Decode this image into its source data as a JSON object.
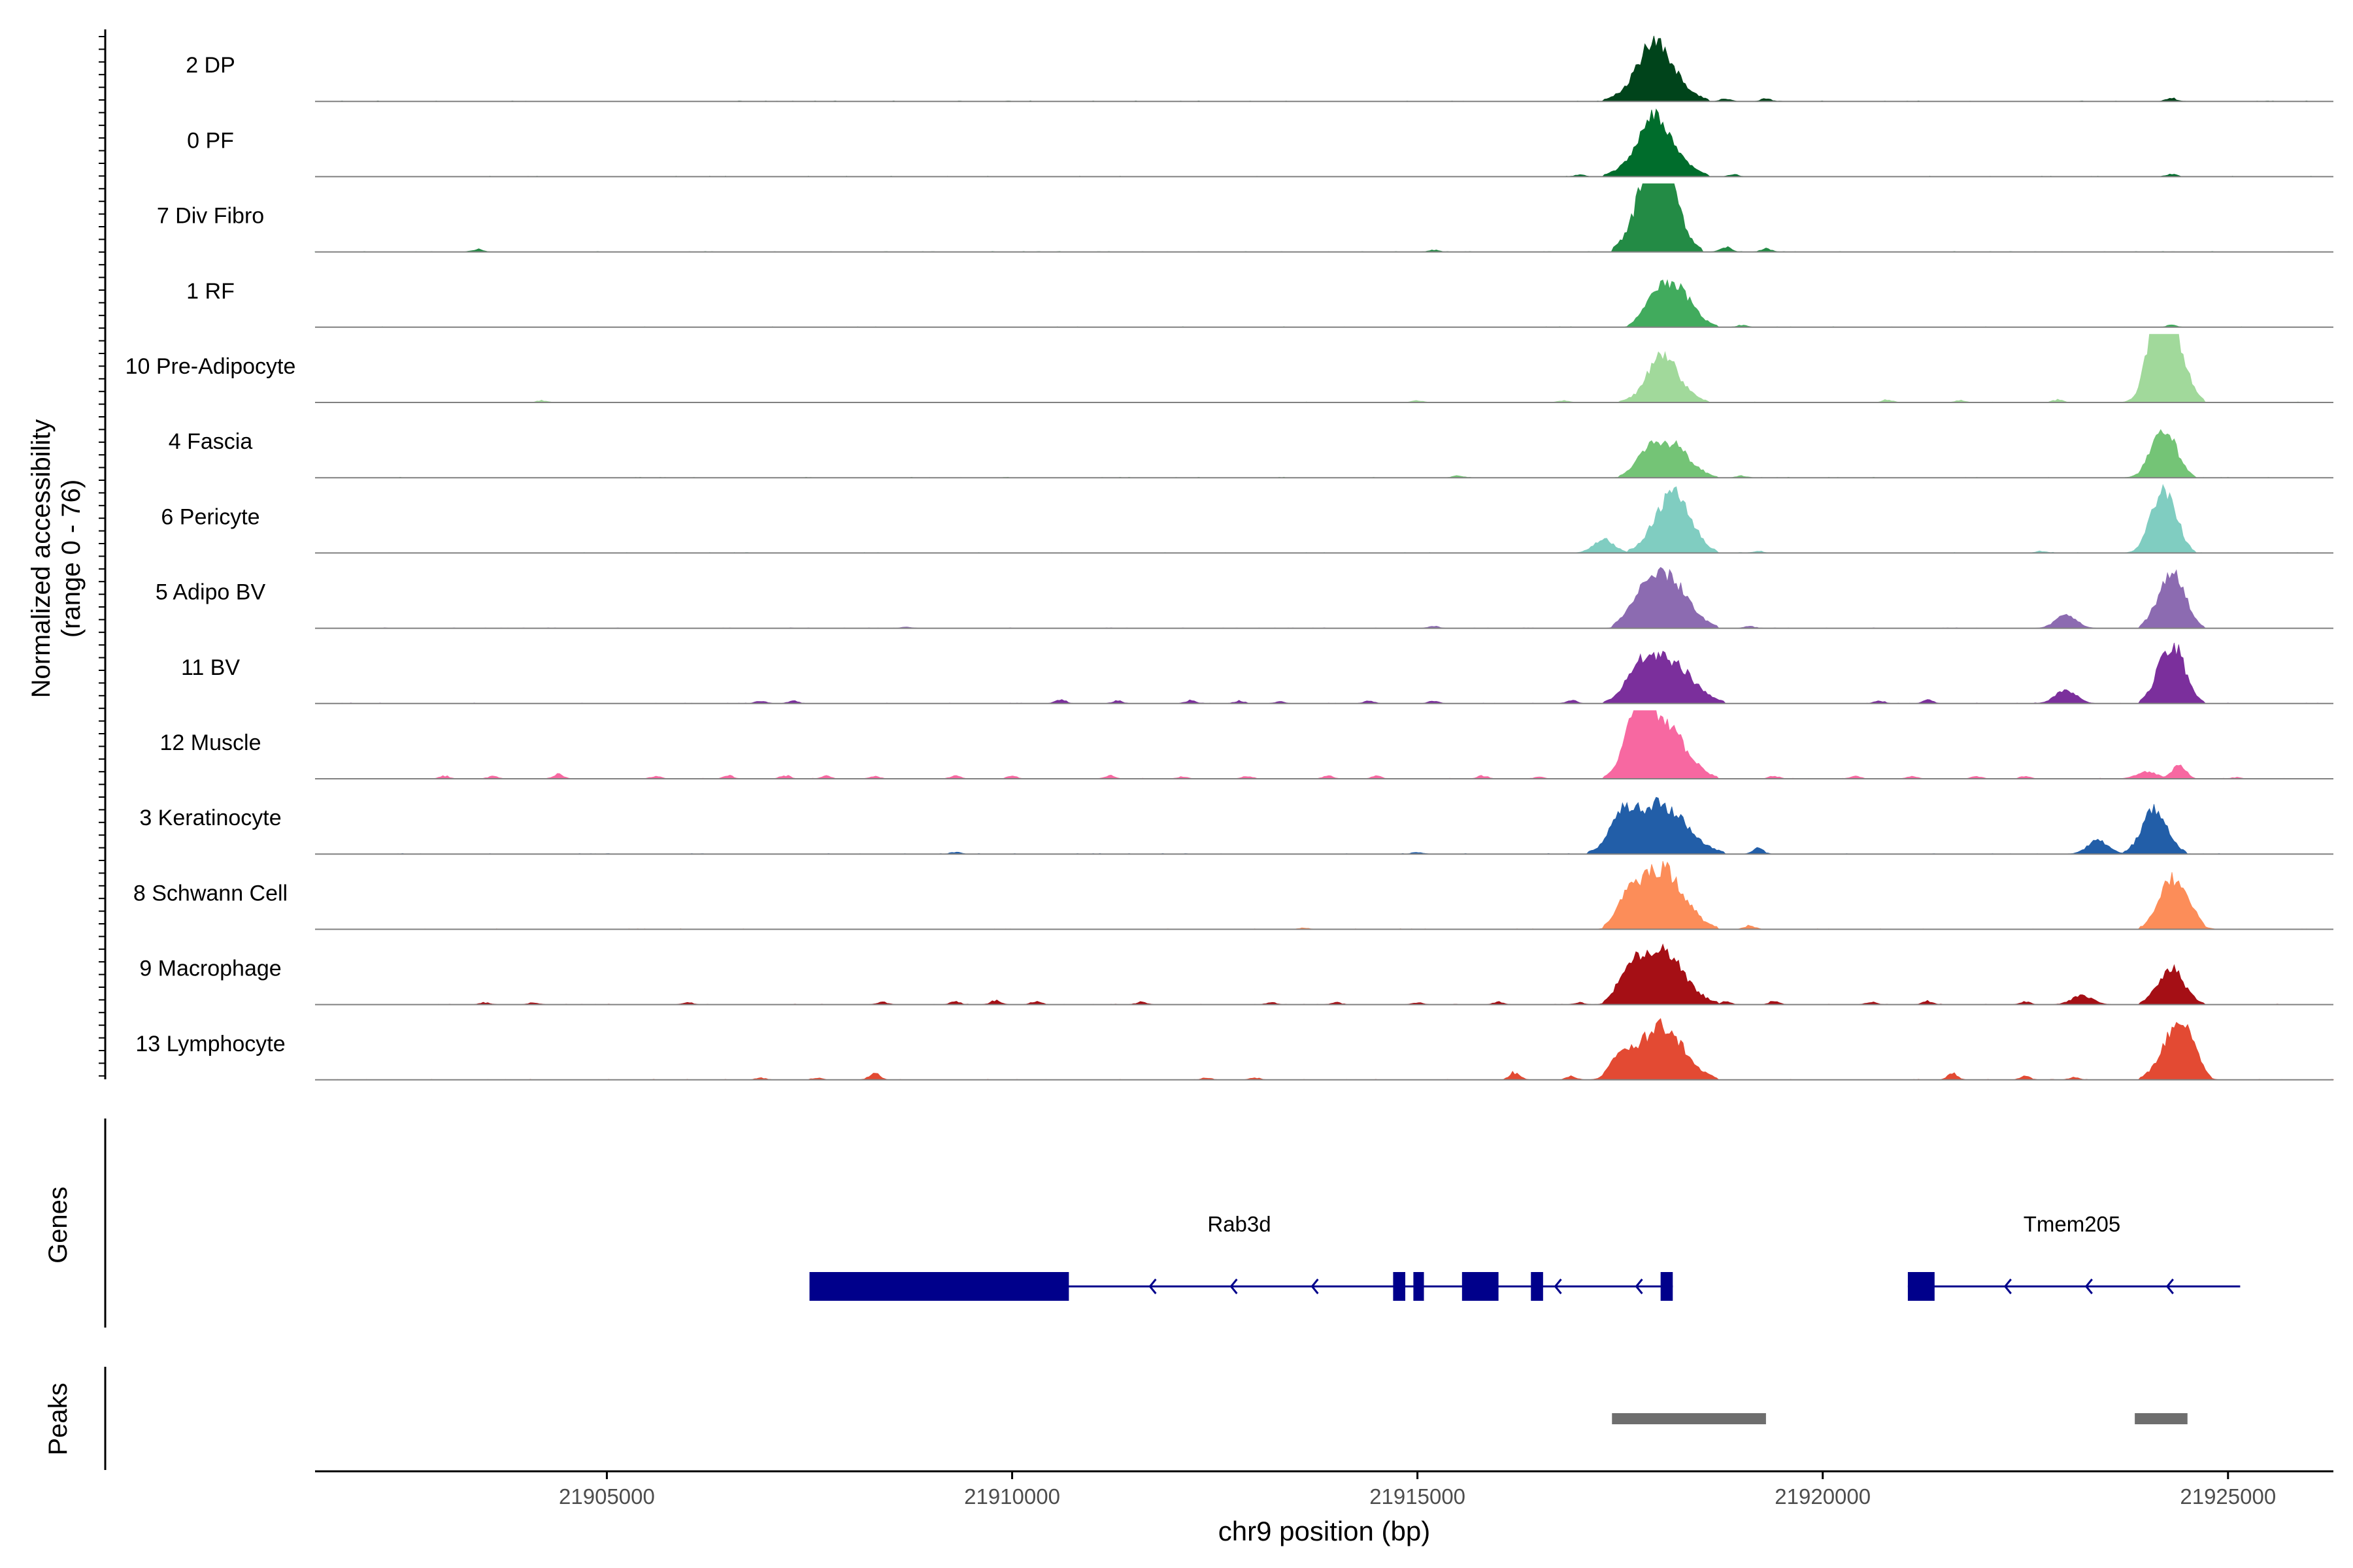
{
  "chart_data": {
    "type": "area",
    "y_axis_label_line1": "Normalized accessibility",
    "y_axis_label_line2": "(range 0 - 76)",
    "ylim": [
      0,
      76
    ],
    "xlabel": "chr9 position (bp)",
    "xlim": [
      21901400,
      21926300
    ],
    "x_ticks": [
      21905000,
      21910000,
      21915000,
      21920000,
      21925000
    ],
    "x_tick_labels": [
      "21905000",
      "21910000",
      "21915000",
      "21920000",
      "21925000"
    ],
    "tracks": [
      {
        "name": "2 DP",
        "color": "#00441b",
        "main": [
          [
            21917300,
            21918600,
            1.0,
            21917900,
            0.35
          ]
        ],
        "minor": [
          [
            21918800,
            4
          ],
          [
            21919300,
            4
          ],
          [
            21924300,
            5
          ]
        ]
      },
      {
        "name": "0 PF",
        "color": "#006d2c",
        "main": [
          [
            21917300,
            21918600,
            1.0,
            21917900,
            0.4
          ]
        ],
        "minor": [
          [
            21917000,
            3
          ],
          [
            21918900,
            3
          ],
          [
            21924300,
            4
          ]
        ]
      },
      {
        "name": "7 Div Fibro",
        "color": "#238b45",
        "main": [
          [
            21917400,
            21918500,
            1.95,
            21918000,
            1.2
          ]
        ],
        "minor": [
          [
            21903400,
            4
          ],
          [
            21915200,
            3
          ],
          [
            21918800,
            8
          ],
          [
            21919300,
            5
          ]
        ]
      },
      {
        "name": "1 RF",
        "color": "#41ab5d",
        "main": [
          [
            21917600,
            21918700,
            0.9,
            21917900,
            0.3
          ]
        ],
        "minor": [
          [
            21919000,
            3
          ],
          [
            21924300,
            3
          ]
        ]
      },
      {
        "name": "10 Pre-Adipocyte",
        "color": "#a1d99b",
        "main": [
          [
            21917500,
            21918600,
            0.7,
            21918000,
            0.4
          ],
          [
            21923900,
            21924700,
            1.6,
            21924100,
            1.2
          ]
        ],
        "minor": [
          [
            21904200,
            3
          ],
          [
            21915000,
            3
          ],
          [
            21916800,
            3
          ],
          [
            21920800,
            4
          ],
          [
            21921700,
            3
          ],
          [
            21922900,
            4
          ]
        ]
      },
      {
        "name": "4 Fascia",
        "color": "#74c476",
        "main": [
          [
            21917500,
            21918700,
            0.75,
            21917800,
            0.3
          ],
          [
            21923900,
            21924600,
            0.85,
            21924100,
            0.4
          ]
        ],
        "minor": [
          [
            21919000,
            3
          ],
          [
            21915500,
            3
          ]
        ]
      },
      {
        "name": "6 Pericyte",
        "color": "#80cdc1",
        "main": [
          [
            21917600,
            21918700,
            1.25,
            21917300,
            0.3
          ],
          [
            21923900,
            21924600,
            1.1,
            21924100,
            0.5
          ]
        ],
        "minor": [
          [
            21919200,
            3
          ],
          [
            21922700,
            3
          ]
        ]
      },
      {
        "name": "5 Adipo BV",
        "color": "#8c6bb1",
        "main": [
          [
            21917400,
            21918700,
            1.2,
            21917700,
            0.3
          ],
          [
            21923900,
            21924700,
            1.25,
            21923000,
            0.3
          ]
        ],
        "minor": [
          [
            21908700,
            2
          ],
          [
            21915200,
            3
          ],
          [
            21919100,
            3
          ]
        ]
      },
      {
        "name": "11 BV",
        "color": "#7b2f9c",
        "main": [
          [
            21917300,
            21918800,
            1.0,
            21917700,
            0.4
          ],
          [
            21923900,
            21924700,
            1.3,
            21923000,
            0.3
          ]
        ],
        "minor": [
          [
            21906900,
            4
          ],
          [
            21907300,
            4
          ],
          [
            21910600,
            6
          ],
          [
            21911300,
            4
          ],
          [
            21912200,
            5
          ],
          [
            21912800,
            4
          ],
          [
            21913300,
            3
          ],
          [
            21914400,
            4
          ],
          [
            21915200,
            4
          ],
          [
            21916900,
            5
          ],
          [
            21920700,
            4
          ],
          [
            21921300,
            5
          ]
        ]
      },
      {
        "name": "12 Muscle",
        "color": "#f768a1",
        "main": [
          [
            21917300,
            21918700,
            1.25,
            21917700,
            1.1
          ],
          [
            21924200,
            21924600,
            0.3,
            21924000,
            0.15
          ]
        ],
        "minor": [
          [
            21903000,
            4
          ],
          [
            21903600,
            4
          ],
          [
            21904400,
            7
          ],
          [
            21905600,
            4
          ],
          [
            21906500,
            5
          ],
          [
            21907200,
            5
          ],
          [
            21907700,
            4
          ],
          [
            21908300,
            4
          ],
          [
            21909300,
            4
          ],
          [
            21910000,
            4
          ],
          [
            21911200,
            5
          ],
          [
            21912100,
            3
          ],
          [
            21912900,
            4
          ],
          [
            21913900,
            5
          ],
          [
            21914500,
            4
          ],
          [
            21915800,
            5
          ],
          [
            21916500,
            3
          ],
          [
            21919400,
            4
          ],
          [
            21920400,
            4
          ],
          [
            21921100,
            4
          ],
          [
            21921900,
            4
          ],
          [
            21922500,
            4
          ],
          [
            21925100,
            2
          ]
        ]
      },
      {
        "name": "3 Keratinocyte",
        "color": "#225ea8",
        "main": [
          [
            21917100,
            21918800,
            1.1,
            21917500,
            0.5
          ],
          [
            21923700,
            21924500,
            0.95,
            21923400,
            0.3
          ]
        ],
        "minor": [
          [
            21909300,
            3
          ],
          [
            21915000,
            3
          ],
          [
            21919200,
            9
          ]
        ]
      },
      {
        "name": "8 Schwann Cell",
        "color": "#fc8d59",
        "main": [
          [
            21917300,
            21918700,
            1.3,
            21917600,
            0.5
          ],
          [
            21923900,
            21924700,
            1.0,
            21924500,
            0.3
          ]
        ],
        "minor": [
          [
            21919100,
            6
          ],
          [
            21913600,
            2
          ]
        ]
      },
      {
        "name": "9 Macrophage",
        "color": "#a50f15",
        "main": [
          [
            21917300,
            21918700,
            1.2,
            21917600,
            0.5
          ],
          [
            21923900,
            21924700,
            0.8,
            21923200,
            0.2
          ]
        ],
        "minor": [
          [
            21903500,
            3
          ],
          [
            21904100,
            3
          ],
          [
            21906000,
            3
          ],
          [
            21908400,
            4
          ],
          [
            21909300,
            4
          ],
          [
            21909800,
            6
          ],
          [
            21910300,
            5
          ],
          [
            21911600,
            4
          ],
          [
            21913200,
            3
          ],
          [
            21914000,
            3
          ],
          [
            21915000,
            3
          ],
          [
            21916000,
            4
          ],
          [
            21917000,
            3
          ],
          [
            21918800,
            4
          ],
          [
            21919400,
            5
          ],
          [
            21920600,
            4
          ],
          [
            21921300,
            5
          ],
          [
            21922500,
            4
          ]
        ]
      },
      {
        "name": "13 Lymphocyte",
        "color": "#e34a33",
        "main": [
          [
            21917300,
            21918700,
            1.15,
            21917500,
            0.4
          ],
          [
            21923900,
            21924800,
            1.0,
            21924500,
            0.5
          ]
        ],
        "minor": [
          [
            21906900,
            3
          ],
          [
            21907600,
            3
          ],
          [
            21908300,
            11
          ],
          [
            21912400,
            3
          ],
          [
            21913000,
            3
          ],
          [
            21916200,
            11
          ],
          [
            21916900,
            5
          ],
          [
            21921600,
            9
          ],
          [
            21922500,
            5
          ],
          [
            21923100,
            4
          ]
        ]
      }
    ],
    "genes_panel_label": "Genes",
    "genes": [
      {
        "name": "Rab3d",
        "start": 21907500,
        "end": 21918150,
        "strand": "-",
        "color": "#00008b",
        "exons": [
          [
            21907500,
            21910700
          ],
          [
            21914700,
            21914850
          ],
          [
            21914950,
            21915080
          ],
          [
            21915550,
            21916000
          ],
          [
            21916400,
            21916550
          ],
          [
            21918000,
            21918150
          ]
        ]
      },
      {
        "name": "Tmem205",
        "start": 21921050,
        "end": 21925150,
        "strand": "-",
        "color": "#00008b",
        "exons": [
          [
            21921050,
            21921380
          ]
        ]
      }
    ],
    "peaks_panel_label": "Peaks",
    "peaks": [
      {
        "start": 21917400,
        "end": 21919300,
        "color": "#6e6e6e"
      },
      {
        "start": 21923850,
        "end": 21924500,
        "color": "#6e6e6e"
      }
    ]
  }
}
